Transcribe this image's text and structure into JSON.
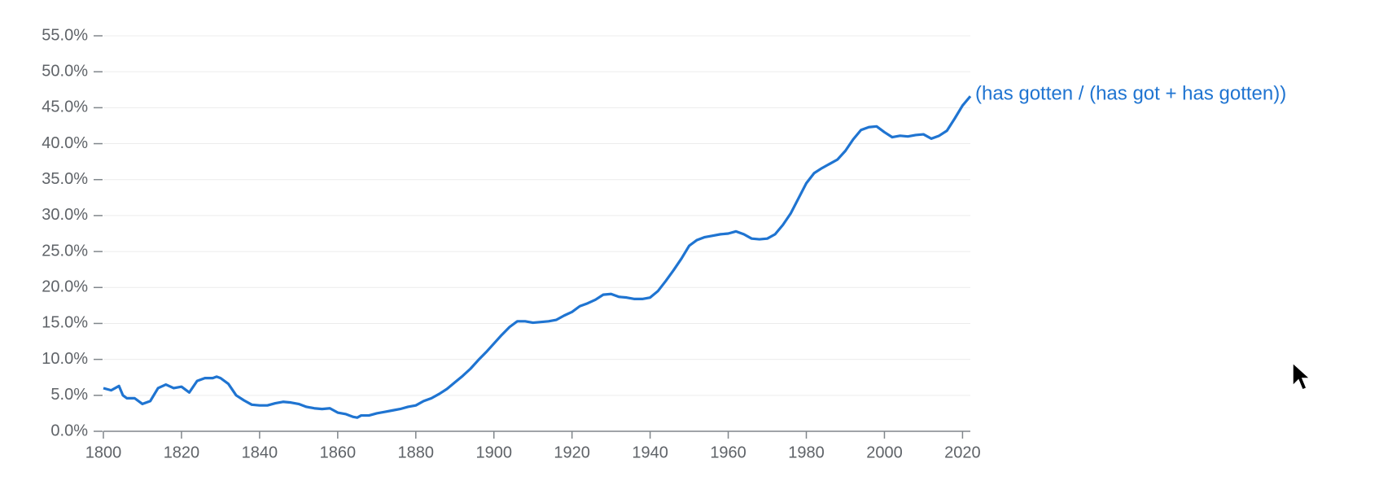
{
  "chart_data": {
    "type": "line",
    "x": [
      1800,
      1802,
      1804,
      1805,
      1806,
      1808,
      1810,
      1812,
      1814,
      1816,
      1818,
      1820,
      1822,
      1824,
      1826,
      1828,
      1829,
      1830,
      1832,
      1834,
      1836,
      1838,
      1840,
      1842,
      1844,
      1846,
      1848,
      1850,
      1852,
      1854,
      1856,
      1858,
      1860,
      1862,
      1864,
      1865,
      1866,
      1868,
      1870,
      1872,
      1874,
      1876,
      1878,
      1880,
      1882,
      1884,
      1886,
      1888,
      1890,
      1892,
      1894,
      1896,
      1898,
      1900,
      1902,
      1904,
      1906,
      1908,
      1910,
      1912,
      1914,
      1916,
      1918,
      1920,
      1922,
      1924,
      1926,
      1928,
      1930,
      1932,
      1934,
      1936,
      1938,
      1940,
      1942,
      1944,
      1946,
      1948,
      1950,
      1952,
      1954,
      1956,
      1958,
      1960,
      1962,
      1964,
      1966,
      1968,
      1970,
      1972,
      1974,
      1976,
      1978,
      1980,
      1982,
      1984,
      1986,
      1988,
      1990,
      1992,
      1994,
      1996,
      1998,
      2000,
      2002,
      2004,
      2006,
      2008,
      2010,
      2012,
      2014,
      2016,
      2018,
      2020,
      2022
    ],
    "series": [
      {
        "name": "(has gotten / (has got + has gotten))",
        "color": "#1f74d1",
        "values": [
          6.0,
          5.7,
          6.3,
          5.0,
          4.6,
          4.6,
          3.8,
          4.2,
          6.0,
          6.5,
          6.0,
          6.2,
          5.4,
          7.0,
          7.4,
          7.4,
          7.6,
          7.4,
          6.6,
          5.0,
          4.3,
          3.7,
          3.6,
          3.6,
          3.9,
          4.1,
          4.0,
          3.8,
          3.4,
          3.2,
          3.1,
          3.2,
          2.6,
          2.4,
          2.0,
          1.9,
          2.2,
          2.2,
          2.5,
          2.7,
          2.9,
          3.1,
          3.4,
          3.6,
          4.2,
          4.6,
          5.2,
          5.9,
          6.8,
          7.7,
          8.7,
          9.9,
          11.0,
          12.2,
          13.4,
          14.5,
          15.3,
          15.3,
          15.1,
          15.2,
          15.3,
          15.5,
          16.1,
          16.6,
          17.4,
          17.8,
          18.3,
          19.0,
          19.1,
          18.7,
          18.6,
          18.4,
          18.4,
          18.6,
          19.5,
          20.9,
          22.4,
          24.0,
          25.8,
          26.6,
          27.0,
          27.2,
          27.4,
          27.5,
          27.8,
          27.4,
          26.8,
          26.7,
          26.8,
          27.4,
          28.7,
          30.3,
          32.4,
          34.5,
          35.9,
          36.6,
          37.2,
          37.8,
          39.0,
          40.6,
          41.9,
          42.3,
          42.4,
          41.6,
          40.9,
          41.1,
          41.0,
          41.2,
          41.3,
          40.7,
          41.1,
          41.8,
          43.5,
          45.3,
          46.6
        ]
      }
    ],
    "xlim": [
      1800,
      2022
    ],
    "xticks": [
      1800,
      1820,
      1840,
      1860,
      1880,
      1900,
      1920,
      1940,
      1960,
      1980,
      2000,
      2020
    ],
    "ylim": [
      0,
      55
    ],
    "yticks": [
      {
        "value": 0,
        "label": "0.0%"
      },
      {
        "value": 5,
        "label": "5.0%"
      },
      {
        "value": 10,
        "label": "10.0%"
      },
      {
        "value": 15,
        "label": "15.0%"
      },
      {
        "value": 20,
        "label": "20.0%"
      },
      {
        "value": 25,
        "label": "25.0%"
      },
      {
        "value": 30,
        "label": "30.0%"
      },
      {
        "value": 35,
        "label": "35.0%"
      },
      {
        "value": 40,
        "label": "40.0%"
      },
      {
        "value": 45,
        "label": "45.0%"
      },
      {
        "value": 50,
        "label": "50.0%"
      },
      {
        "value": 55,
        "label": "55.0%"
      }
    ],
    "grid": true
  }
}
